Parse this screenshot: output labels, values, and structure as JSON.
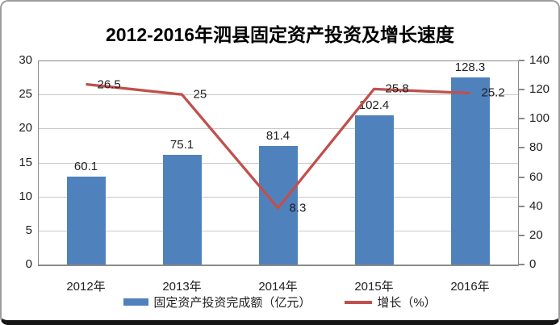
{
  "frame": {
    "title": "2012-2016年泗县固定资产投资及增长速度"
  },
  "chart_data": {
    "type": "bar+line",
    "title": "2012-2016年泗县固定资产投资及增长速度",
    "categories": [
      "2012年",
      "2013年",
      "2014年",
      "2015年",
      "2016年"
    ],
    "series": [
      {
        "name": "固定资产投资完成额（亿元）",
        "type": "bar",
        "axis": "right",
        "values": [
          60.1,
          75.1,
          81.4,
          102.4,
          128.3
        ],
        "labels": [
          "60.1",
          "75.1",
          "81.4",
          "102.4",
          "128.3"
        ],
        "color": "#4f81bd"
      },
      {
        "name": "增长（%）",
        "type": "line",
        "axis": "left",
        "values": [
          26.5,
          25,
          8.3,
          25.8,
          25.2
        ],
        "labels": [
          "26.5",
          "25",
          "8.3",
          "25.8",
          "25.2"
        ],
        "color": "#c0504d"
      }
    ],
    "left_axis": {
      "min": 0,
      "max": 30,
      "ticks": [
        30,
        25,
        20,
        15,
        10,
        5,
        0
      ]
    },
    "right_axis": {
      "min": 0,
      "max": 140,
      "ticks": [
        140,
        120,
        100,
        80,
        60,
        40,
        20,
        0
      ]
    },
    "grid": true,
    "legend_position": "bottom"
  },
  "legend": {
    "items": [
      {
        "label": "固定资产投资完成额（亿元）",
        "swatch": "bar",
        "color": "#4f81bd"
      },
      {
        "label": "增长（%）",
        "swatch": "line",
        "color": "#c0504d"
      }
    ]
  },
  "colors": {
    "bar": "#4f81bd",
    "line": "#c0504d",
    "gridline": "#c9c9c9",
    "axis": "#8a8a8a",
    "text": "#1f1f1f"
  }
}
